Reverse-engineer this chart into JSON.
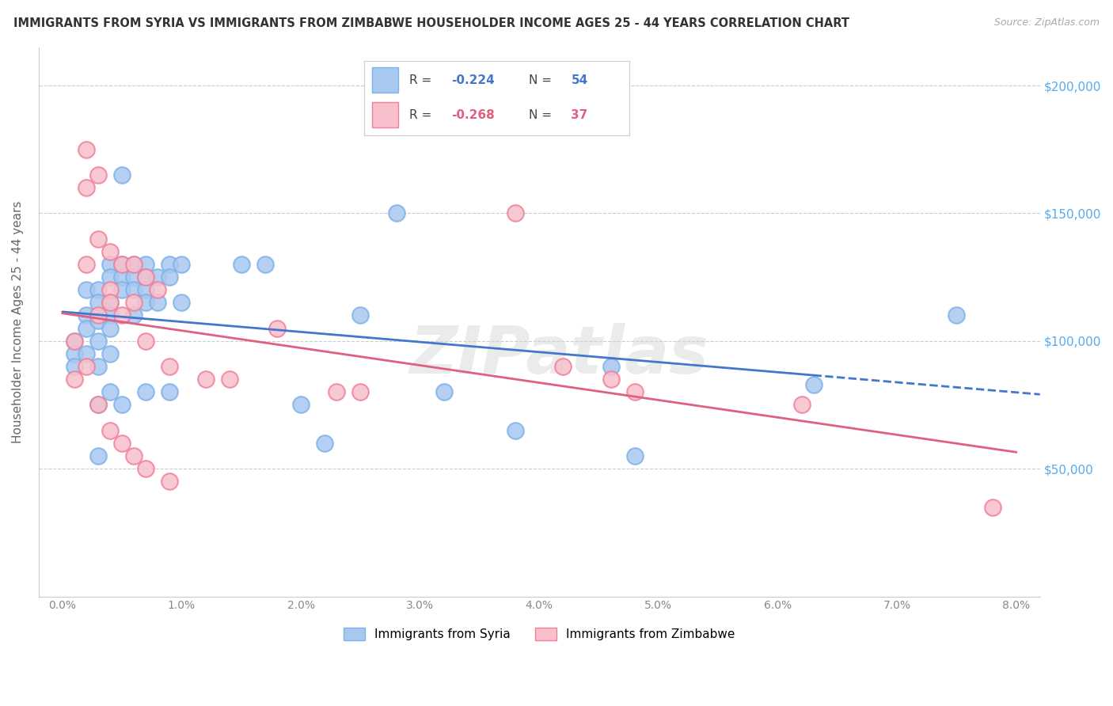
{
  "title": "IMMIGRANTS FROM SYRIA VS IMMIGRANTS FROM ZIMBABWE HOUSEHOLDER INCOME AGES 25 - 44 YEARS CORRELATION CHART",
  "source": "Source: ZipAtlas.com",
  "ylabel": "Householder Income Ages 25 - 44 years",
  "xlabel_ticks": [
    "0.0%",
    "1.0%",
    "2.0%",
    "3.0%",
    "4.0%",
    "5.0%",
    "6.0%",
    "7.0%",
    "8.0%"
  ],
  "xlabel_vals": [
    0.0,
    0.01,
    0.02,
    0.03,
    0.04,
    0.05,
    0.06,
    0.07,
    0.08
  ],
  "ytick_vals": [
    0,
    50000,
    100000,
    150000,
    200000
  ],
  "ytick_labels_right": [
    "",
    "$50,000",
    "$100,000",
    "$150,000",
    "$200,000"
  ],
  "ylim": [
    0,
    215000
  ],
  "xlim": [
    -0.002,
    0.082
  ],
  "syria_R": -0.224,
  "syria_N": 54,
  "zimbabwe_R": -0.268,
  "zimbabwe_N": 37,
  "syria_color": "#A8C8F0",
  "syria_edge_color": "#7EB3E8",
  "zimbabwe_color": "#F8C0CC",
  "zimbabwe_edge_color": "#F08098",
  "syria_line_color": "#4477CC",
  "zimbabwe_line_color": "#E06080",
  "background_color": "#FFFFFF",
  "grid_color": "#CCCCCC",
  "watermark": "ZIPatlas",
  "legend_syria_color": "#A8C8F0",
  "legend_zimbabwe_color": "#F8C0CC",
  "syria_x": [
    0.001,
    0.001,
    0.001,
    0.002,
    0.002,
    0.002,
    0.002,
    0.003,
    0.003,
    0.003,
    0.003,
    0.003,
    0.003,
    0.003,
    0.004,
    0.004,
    0.004,
    0.004,
    0.004,
    0.004,
    0.004,
    0.005,
    0.005,
    0.005,
    0.005,
    0.005,
    0.006,
    0.006,
    0.006,
    0.006,
    0.007,
    0.007,
    0.007,
    0.007,
    0.007,
    0.008,
    0.008,
    0.009,
    0.009,
    0.009,
    0.01,
    0.01,
    0.015,
    0.017,
    0.02,
    0.022,
    0.025,
    0.028,
    0.032,
    0.038,
    0.046,
    0.048,
    0.063,
    0.075
  ],
  "syria_y": [
    100000,
    95000,
    90000,
    120000,
    110000,
    105000,
    95000,
    120000,
    115000,
    108000,
    100000,
    90000,
    75000,
    55000,
    130000,
    125000,
    115000,
    110000,
    105000,
    95000,
    80000,
    165000,
    130000,
    125000,
    120000,
    75000,
    130000,
    125000,
    120000,
    110000,
    130000,
    125000,
    120000,
    115000,
    80000,
    125000,
    115000,
    130000,
    125000,
    80000,
    130000,
    115000,
    130000,
    130000,
    75000,
    60000,
    110000,
    150000,
    80000,
    65000,
    90000,
    55000,
    83000,
    110000
  ],
  "zimbabwe_x": [
    0.001,
    0.001,
    0.002,
    0.002,
    0.002,
    0.002,
    0.003,
    0.003,
    0.003,
    0.003,
    0.004,
    0.004,
    0.004,
    0.004,
    0.005,
    0.005,
    0.005,
    0.006,
    0.006,
    0.006,
    0.007,
    0.007,
    0.007,
    0.008,
    0.009,
    0.009,
    0.012,
    0.014,
    0.018,
    0.023,
    0.025,
    0.038,
    0.042,
    0.046,
    0.048,
    0.062,
    0.078
  ],
  "zimbabwe_y": [
    100000,
    85000,
    175000,
    160000,
    130000,
    90000,
    165000,
    140000,
    110000,
    75000,
    135000,
    120000,
    115000,
    65000,
    130000,
    110000,
    60000,
    130000,
    115000,
    55000,
    125000,
    100000,
    50000,
    120000,
    90000,
    45000,
    85000,
    85000,
    105000,
    80000,
    80000,
    150000,
    90000,
    85000,
    80000,
    75000,
    35000
  ]
}
